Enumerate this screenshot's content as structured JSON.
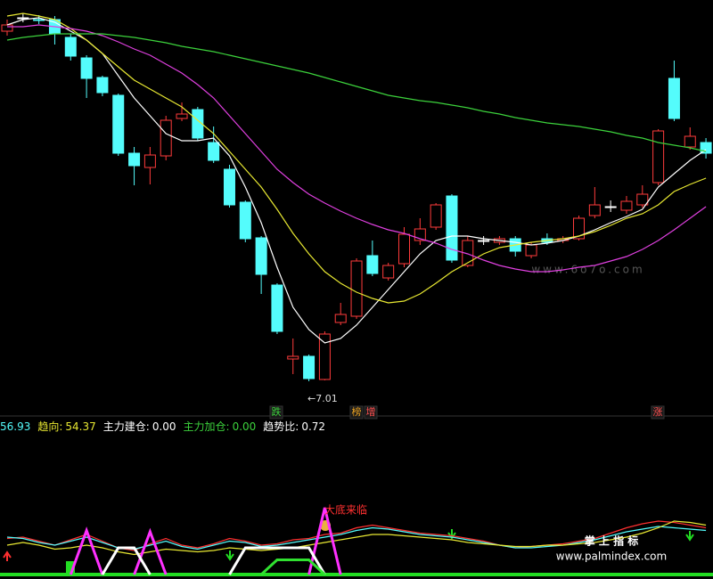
{
  "chart_data": [
    {
      "type": "candlestick",
      "categories": [
        null,
        null,
        null,
        null,
        null,
        null,
        null,
        null,
        null,
        null,
        null,
        null,
        null,
        null,
        null,
        null,
        null,
        null,
        null,
        null,
        null,
        null,
        null,
        null,
        null,
        null,
        null,
        null,
        null,
        null,
        null,
        null,
        null,
        null,
        null,
        null,
        null,
        null,
        null,
        null,
        null,
        null,
        null,
        null,
        null
      ],
      "open": [
        10.94,
        11.09,
        11.07,
        11.07,
        10.87,
        10.64,
        10.42,
        10.22,
        9.57,
        9.41,
        9.54,
        9.96,
        10.06,
        9.69,
        9.39,
        9.02,
        8.62,
        8.09,
        7.26,
        7.29,
        7.03,
        7.67,
        7.74,
        8.42,
        8.17,
        8.33,
        8.59,
        8.74,
        9.09,
        8.31,
        8.59,
        8.57,
        8.61,
        8.42,
        8.61,
        8.59,
        8.61,
        8.87,
        8.97,
        8.93,
        8.99,
        9.24,
        10.41,
        9.64,
        9.69
      ],
      "high": [
        11.07,
        11.14,
        11.12,
        11.11,
        10.91,
        10.67,
        10.44,
        10.24,
        9.64,
        9.64,
        9.99,
        10.14,
        10.09,
        9.87,
        9.44,
        9.04,
        8.64,
        8.11,
        7.49,
        7.31,
        7.57,
        7.89,
        8.39,
        8.59,
        8.34,
        8.74,
        8.84,
        9.01,
        9.11,
        8.64,
        8.64,
        8.64,
        8.64,
        8.57,
        8.67,
        8.64,
        8.87,
        9.19,
        9.04,
        9.09,
        9.21,
        9.84,
        10.61,
        9.86,
        9.74
      ],
      "low": [
        10.89,
        11.04,
        11.02,
        10.79,
        10.61,
        10.19,
        10.21,
        9.54,
        9.21,
        9.22,
        9.49,
        9.93,
        9.71,
        9.46,
        8.96,
        8.57,
        7.99,
        7.54,
        7.09,
        7.01,
        7.02,
        7.64,
        7.71,
        8.19,
        8.14,
        8.29,
        8.54,
        8.71,
        8.34,
        8.29,
        8.54,
        8.54,
        8.41,
        8.39,
        8.54,
        8.56,
        8.59,
        8.84,
        8.91,
        8.89,
        8.96,
        9.21,
        9.93,
        9.61,
        9.51
      ],
      "close": [
        11.01,
        11.09,
        11.06,
        10.91,
        10.66,
        10.41,
        10.25,
        9.57,
        9.43,
        9.55,
        9.94,
        10.01,
        9.74,
        9.49,
        8.99,
        8.61,
        8.21,
        7.57,
        7.29,
        7.04,
        7.54,
        7.76,
        8.36,
        8.22,
        8.31,
        8.66,
        8.72,
        8.99,
        8.37,
        8.59,
        8.59,
        8.61,
        8.47,
        8.54,
        8.57,
        8.61,
        8.84,
        8.99,
        8.97,
        9.03,
        9.11,
        9.82,
        9.96,
        9.76,
        9.57
      ],
      "up_color": "#ff3b3b",
      "down_color": "#54fcfc",
      "flat_color": "#ffffff",
      "series": [
        {
          "color": "#ffffff",
          "values": [
            11.01,
            11.07,
            11.09,
            11.04,
            10.94,
            10.84,
            10.69,
            10.44,
            10.19,
            9.99,
            9.79,
            9.71,
            9.71,
            9.74,
            9.54,
            9.19,
            8.79,
            8.29,
            7.84,
            7.59,
            7.44,
            7.49,
            7.64,
            7.84,
            8.04,
            8.24,
            8.44,
            8.59,
            8.64,
            8.64,
            8.61,
            8.59,
            8.57,
            8.54,
            8.56,
            8.59,
            8.64,
            8.71,
            8.79,
            8.86,
            8.94,
            9.19,
            9.34,
            9.49,
            9.61
          ]
        },
        {
          "color": "#e8e832",
          "values": [
            11.11,
            11.14,
            11.11,
            11.07,
            10.97,
            10.84,
            10.69,
            10.54,
            10.39,
            10.29,
            10.19,
            10.09,
            9.94,
            9.79,
            9.59,
            9.39,
            9.19,
            8.94,
            8.67,
            8.44,
            8.24,
            8.11,
            8.01,
            7.94,
            7.89,
            7.91,
            7.99,
            8.11,
            8.24,
            8.34,
            8.44,
            8.51,
            8.54,
            8.57,
            8.59,
            8.61,
            8.64,
            8.69,
            8.76,
            8.84,
            8.89,
            8.99,
            9.14,
            9.22,
            9.29
          ]
        },
        {
          "color": "#e040e0",
          "values": [
            10.99,
            10.99,
            11.01,
            10.99,
            10.97,
            10.94,
            10.89,
            10.82,
            10.74,
            10.67,
            10.57,
            10.47,
            10.34,
            10.19,
            9.99,
            9.79,
            9.59,
            9.39,
            9.24,
            9.11,
            9.01,
            8.92,
            8.84,
            8.77,
            8.71,
            8.67,
            8.61,
            8.56,
            8.49,
            8.44,
            8.37,
            8.31,
            8.27,
            8.24,
            8.24,
            8.26,
            8.29,
            8.31,
            8.36,
            8.41,
            8.49,
            8.59,
            8.71,
            8.84,
            8.97
          ]
        },
        {
          "color": "#3cd23c",
          "values": [
            10.84,
            10.87,
            10.89,
            10.91,
            10.91,
            10.91,
            10.91,
            10.89,
            10.87,
            10.84,
            10.81,
            10.77,
            10.74,
            10.71,
            10.67,
            10.63,
            10.59,
            10.55,
            10.51,
            10.47,
            10.42,
            10.37,
            10.32,
            10.27,
            10.22,
            10.19,
            10.16,
            10.14,
            10.11,
            10.08,
            10.04,
            10.01,
            9.97,
            9.94,
            9.91,
            9.89,
            9.87,
            9.84,
            9.81,
            9.77,
            9.74,
            9.69,
            9.66,
            9.63,
            9.59
          ]
        }
      ],
      "ylim": [
        6.69,
        11.29
      ],
      "annotations": [
        {
          "text": "←7.01",
          "color": "#dddddd"
        },
        {
          "text": "跌",
          "color": "#3cd23c"
        },
        {
          "text": "榜",
          "color": "#e8a020"
        },
        {
          "text": "增",
          "color": "#ff5050"
        },
        {
          "text": "涨",
          "color": "#ff5050"
        }
      ],
      "watermark": "www.6o7o.com"
    },
    {
      "type": "line",
      "categories": [
        null,
        null,
        null,
        null,
        null,
        null,
        null,
        null,
        null,
        null,
        null,
        null,
        null,
        null,
        null,
        null,
        null,
        null,
        null,
        null,
        null,
        null,
        null,
        null,
        null,
        null,
        null,
        null,
        null,
        null,
        null,
        null,
        null,
        null,
        null,
        null,
        null,
        null,
        null,
        null,
        null,
        null,
        null,
        null,
        null
      ],
      "readouts": [
        {
          "value": "56.93",
          "color": "#54fcfc"
        },
        {
          "label": "趋向:",
          "value": "54.37",
          "color": "#e8e832"
        },
        {
          "label": "主力建仓:",
          "value": "0.00",
          "color": "#ffffff"
        },
        {
          "label": "主力加仓:",
          "value": "0.00",
          "color": "#3cd23c"
        },
        {
          "label": "趋势比:",
          "value": "0.72",
          "color": "#ffffff"
        }
      ],
      "series": [
        {
          "color": "#ff3030",
          "values": [
            27,
            28,
            25,
            22,
            26,
            30,
            25,
            20,
            18,
            23,
            27,
            22,
            20,
            23,
            27,
            25,
            22,
            23,
            26,
            27,
            30,
            31,
            35,
            37,
            35,
            33,
            31,
            30,
            29,
            27,
            25,
            22,
            20,
            21,
            22,
            23,
            25,
            27,
            31,
            35,
            38,
            40,
            39,
            37,
            35
          ]
        },
        {
          "color": "#54fcfc",
          "values": [
            28,
            27,
            24,
            22,
            25,
            28,
            24,
            20,
            19,
            22,
            25,
            21,
            19,
            22,
            25,
            24,
            21,
            22,
            24,
            26,
            28,
            30,
            33,
            35,
            34,
            32,
            30,
            29,
            28,
            26,
            24,
            22,
            20,
            20,
            21,
            22,
            24,
            26,
            29,
            32,
            34,
            36,
            35,
            34,
            33
          ]
        },
        {
          "color": "#e8e832",
          "values": [
            22,
            24,
            22,
            19,
            20,
            22,
            20,
            17,
            15,
            17,
            19,
            18,
            17,
            18,
            20,
            19,
            18,
            19,
            20,
            22,
            24,
            26,
            28,
            30,
            30,
            29,
            28,
            27,
            26,
            24,
            23,
            22,
            21,
            21,
            22,
            22,
            23,
            24,
            26,
            28,
            31,
            35,
            40,
            39,
            37
          ]
        },
        {
          "color": "#ff30ff",
          "width": 3,
          "values": [
            null,
            null,
            null,
            null,
            0,
            33,
            0,
            null,
            0,
            32,
            0,
            null,
            null,
            null,
            null,
            null,
            null,
            null,
            null,
            0,
            50,
            0,
            null,
            null,
            null,
            null,
            null,
            null,
            null,
            null,
            null,
            null,
            null,
            null,
            null,
            null,
            null,
            null,
            null,
            null,
            null,
            null,
            null,
            null,
            null
          ]
        },
        {
          "color": "#ffffff",
          "width": 3,
          "values": [
            null,
            null,
            null,
            null,
            null,
            null,
            0,
            20,
            20,
            0,
            null,
            null,
            null,
            null,
            0,
            20,
            20,
            20,
            20,
            20,
            0,
            null,
            null,
            null,
            null,
            null,
            null,
            null,
            null,
            null,
            null,
            null,
            null,
            null,
            null,
            null,
            null,
            null,
            null,
            null,
            null,
            null,
            null,
            null,
            null
          ]
        },
        {
          "color": "#30e030",
          "width": 3,
          "values": [
            null,
            null,
            null,
            null,
            null,
            null,
            null,
            null,
            null,
            null,
            null,
            null,
            null,
            null,
            null,
            null,
            0,
            11,
            11,
            11,
            0,
            null,
            null,
            null,
            null,
            null,
            null,
            null,
            null,
            null,
            null,
            null,
            null,
            null,
            null,
            null,
            null,
            null,
            null,
            null,
            null,
            null,
            null,
            null,
            null
          ]
        }
      ],
      "ylim": [
        0,
        100
      ],
      "annotations": [
        {
          "text": "大底来临",
          "color": "#ff3030"
        }
      ],
      "watermark": [
        "掌 上 指 标",
        "www.palmindex.com"
      ]
    }
  ]
}
